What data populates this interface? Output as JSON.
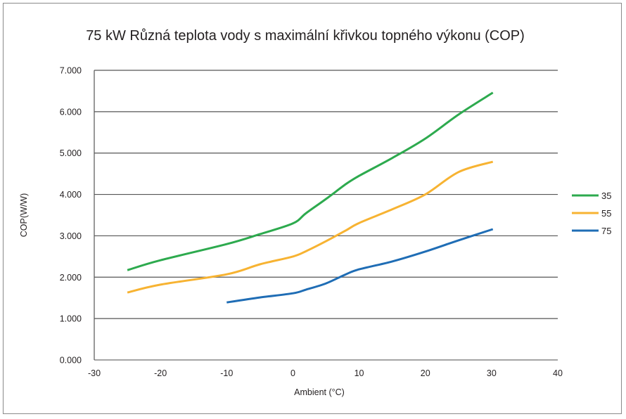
{
  "chart_data": {
    "type": "line",
    "title": "75 kW Různá teplota  vody s maximální křivkou topného výkonu (COP)",
    "xlabel": "Ambient (°C)",
    "ylabel": "COP(W/W)",
    "xlim": [
      -30,
      40
    ],
    "ylim": [
      0,
      7
    ],
    "x_ticks": [
      "-30",
      "-20",
      "-10",
      "0",
      "10",
      "20",
      "30",
      "40"
    ],
    "x_tick_values": [
      -30,
      -20,
      -10,
      0,
      10,
      20,
      30,
      40
    ],
    "y_ticks": [
      "0.000",
      "1.000",
      "2.000",
      "3.000",
      "4.000",
      "5.000",
      "6.000",
      "7.000"
    ],
    "y_tick_values": [
      0,
      1,
      2,
      3,
      4,
      5,
      6,
      7
    ],
    "grid": "horizontal",
    "legend_position": "right",
    "series": [
      {
        "name": "35",
        "color": "#2daa4e",
        "x": [
          -25,
          -20,
          -10,
          -5,
          0,
          2,
          5,
          8,
          10,
          15,
          20,
          25,
          30.2
        ],
        "y": [
          2.17,
          2.41,
          2.8,
          3.04,
          3.3,
          3.55,
          3.89,
          4.25,
          4.45,
          4.88,
          5.35,
          5.93,
          6.46
        ]
      },
      {
        "name": "55",
        "color": "#f7b332",
        "x": [
          -25,
          -20,
          -10,
          -5,
          0,
          2,
          5,
          8,
          10,
          15,
          20,
          25,
          30.2
        ],
        "y": [
          1.63,
          1.82,
          2.07,
          2.31,
          2.5,
          2.63,
          2.87,
          3.13,
          3.31,
          3.64,
          4.0,
          4.54,
          4.79
        ]
      },
      {
        "name": "75",
        "color": "#1f6db5",
        "x": [
          -10,
          -5,
          0,
          2,
          5,
          8,
          10,
          15,
          20,
          25,
          30.2
        ],
        "y": [
          1.39,
          1.51,
          1.61,
          1.7,
          1.85,
          2.07,
          2.19,
          2.38,
          2.62,
          2.89,
          3.16
        ]
      }
    ]
  }
}
